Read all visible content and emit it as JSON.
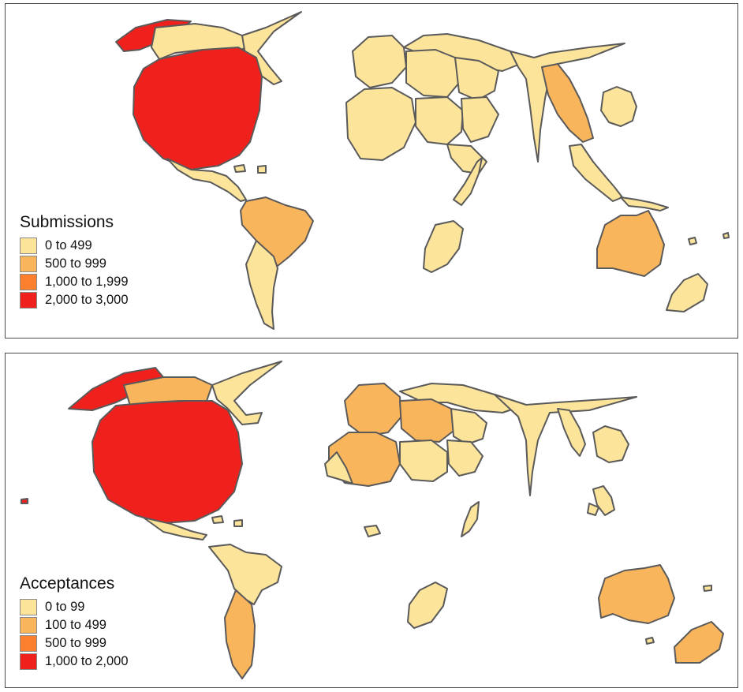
{
  "colors": {
    "class1": "#fce49a",
    "class2": "#f9b55c",
    "class3": "#fb7f2c",
    "class4": "#f0201c",
    "border": "#5a5a5a",
    "frame": "#4a4a4a"
  },
  "maps": [
    {
      "legend_title": "Submissions",
      "legend": [
        {
          "label": "0 to 499",
          "color": "#fce49a"
        },
        {
          "label": "500 to 999",
          "color": "#f9b55c"
        },
        {
          "label": "1,000 to 1,999",
          "color": "#fb7f2c"
        },
        {
          "label": "2,000 to 3,000",
          "color": "#f0201c"
        }
      ]
    },
    {
      "legend_title": "Acceptances",
      "legend": [
        {
          "label": "0 to 99",
          "color": "#fce49a"
        },
        {
          "label": "100 to 499",
          "color": "#f9b55c"
        },
        {
          "label": "500 to 999",
          "color": "#fb7f2c"
        },
        {
          "label": "1,000 to 2,000",
          "color": "#f0201c"
        }
      ]
    }
  ]
}
